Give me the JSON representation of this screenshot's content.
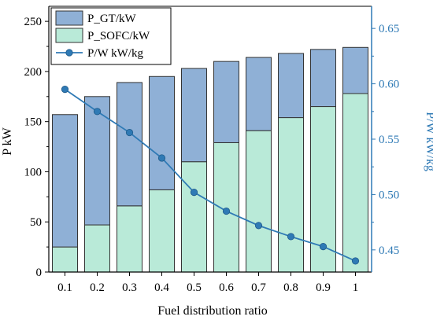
{
  "chart_data": {
    "type": "bar",
    "stacked": true,
    "categories": [
      "0.1",
      "0.2",
      "0.3",
      "0.4",
      "0.5",
      "0.6",
      "0.7",
      "0.8",
      "0.9",
      "1"
    ],
    "series": [
      {
        "name": "P_SOFC/kW",
        "type": "bar",
        "axis": "left",
        "color": "#b9ead8",
        "values": [
          25,
          47,
          66,
          82,
          110,
          129,
          141,
          154,
          165,
          178
        ]
      },
      {
        "name": "P_GT/kW",
        "type": "bar",
        "axis": "left",
        "color": "#8fb0d6",
        "values": [
          132,
          128,
          123,
          113,
          93,
          81,
          73,
          64,
          57,
          46
        ]
      },
      {
        "name": "P/W kW/kg",
        "type": "line",
        "axis": "right",
        "color": "#2f7ab5",
        "values": [
          0.595,
          0.575,
          0.556,
          0.533,
          0.502,
          0.485,
          0.472,
          0.462,
          0.453,
          0.44
        ]
      }
    ],
    "xlabel": "Fuel distribution ratio",
    "ylabel": "P kW",
    "y2label": "P/W kW/kg",
    "ylim": [
      0,
      265
    ],
    "yticks": [
      0,
      50,
      100,
      150,
      200,
      250
    ],
    "y2lim": [
      0.43,
      0.67
    ],
    "y2ticks": [
      0.45,
      0.5,
      0.55,
      0.6,
      0.65
    ],
    "legend": {
      "placement": "top-left",
      "entries": [
        "P_GT/kW",
        "P_SOFC/kW",
        "P/W kW/kg"
      ]
    },
    "colors": {
      "axis_right": "#2f7ab5",
      "axis_left": "#000000",
      "bar_edge": "#333333"
    }
  }
}
